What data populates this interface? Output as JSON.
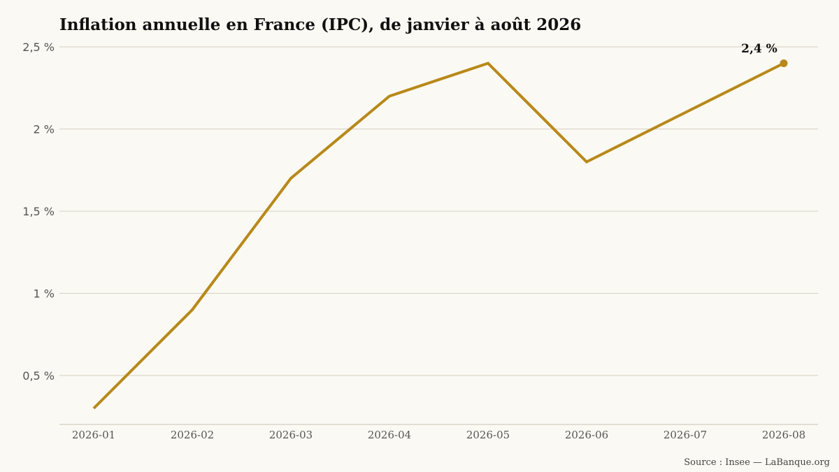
{
  "chart_data": {
    "type": "line",
    "title": "Inflation annuelle en France (IPC), de janvier à août 2026",
    "x": [
      "2026-01",
      "2026-02",
      "2026-03",
      "2026-04",
      "2026-05",
      "2026-06",
      "2026-07",
      "2026-08"
    ],
    "series": [
      {
        "values": [
          0.3,
          0.9,
          1.7,
          2.2,
          2.4,
          1.8,
          2.1,
          2.4
        ]
      }
    ],
    "y_ticks": [
      0.5,
      1,
      1.5,
      2,
      2.5
    ],
    "y_tick_labels": [
      "0,5 %",
      "1 %",
      "1,5 %",
      "2 %",
      "2,5 %"
    ],
    "ylim": [
      0.2,
      2.5
    ],
    "grid": true,
    "end_label": "2,4 %",
    "source": "Source : Insee — LaBanque.org"
  },
  "colors": {
    "background": "#fbf9f3",
    "line": "#b8891a",
    "grid": "#d6cfc3"
  }
}
